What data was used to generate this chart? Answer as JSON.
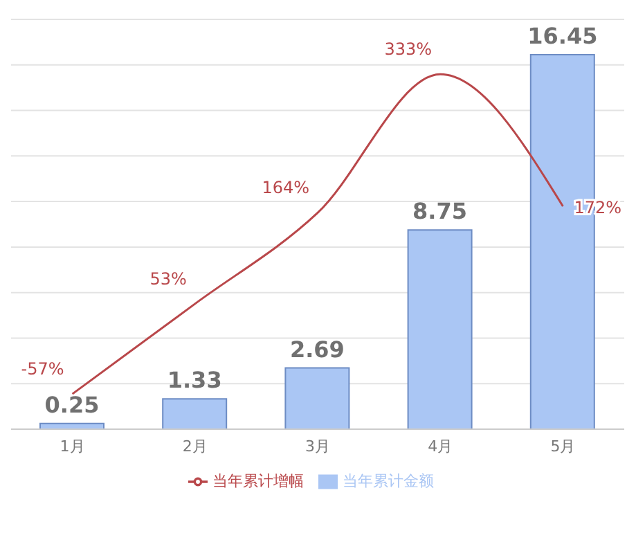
{
  "chart_data": {
    "type": "bar",
    "categories": [
      "1月",
      "2月",
      "3月",
      "4月",
      "5月"
    ],
    "series": [
      {
        "name": "当年累计金额",
        "color": "#aac6f4",
        "values": [
          0.25,
          1.33,
          2.69,
          8.75,
          16.45
        ],
        "value_labels": [
          "0.25",
          "1.33",
          "2.69",
          "8.75",
          "16.45"
        ]
      },
      {
        "name": "当年累计增幅",
        "type": "line",
        "axis": "y2",
        "color": "#b9474a",
        "values": [
          -57,
          53,
          164,
          333,
          172
        ],
        "value_labels": [
          "-57%",
          "53%",
          "164%",
          "333%",
          "172%"
        ]
      }
    ],
    "ylim": [
      0,
      18
    ],
    "y2lim": [
      -100,
      400
    ],
    "grid": "y",
    "legend": "bottom",
    "tick_labels": "x",
    "marker": "none",
    "line_style": "solid"
  }
}
